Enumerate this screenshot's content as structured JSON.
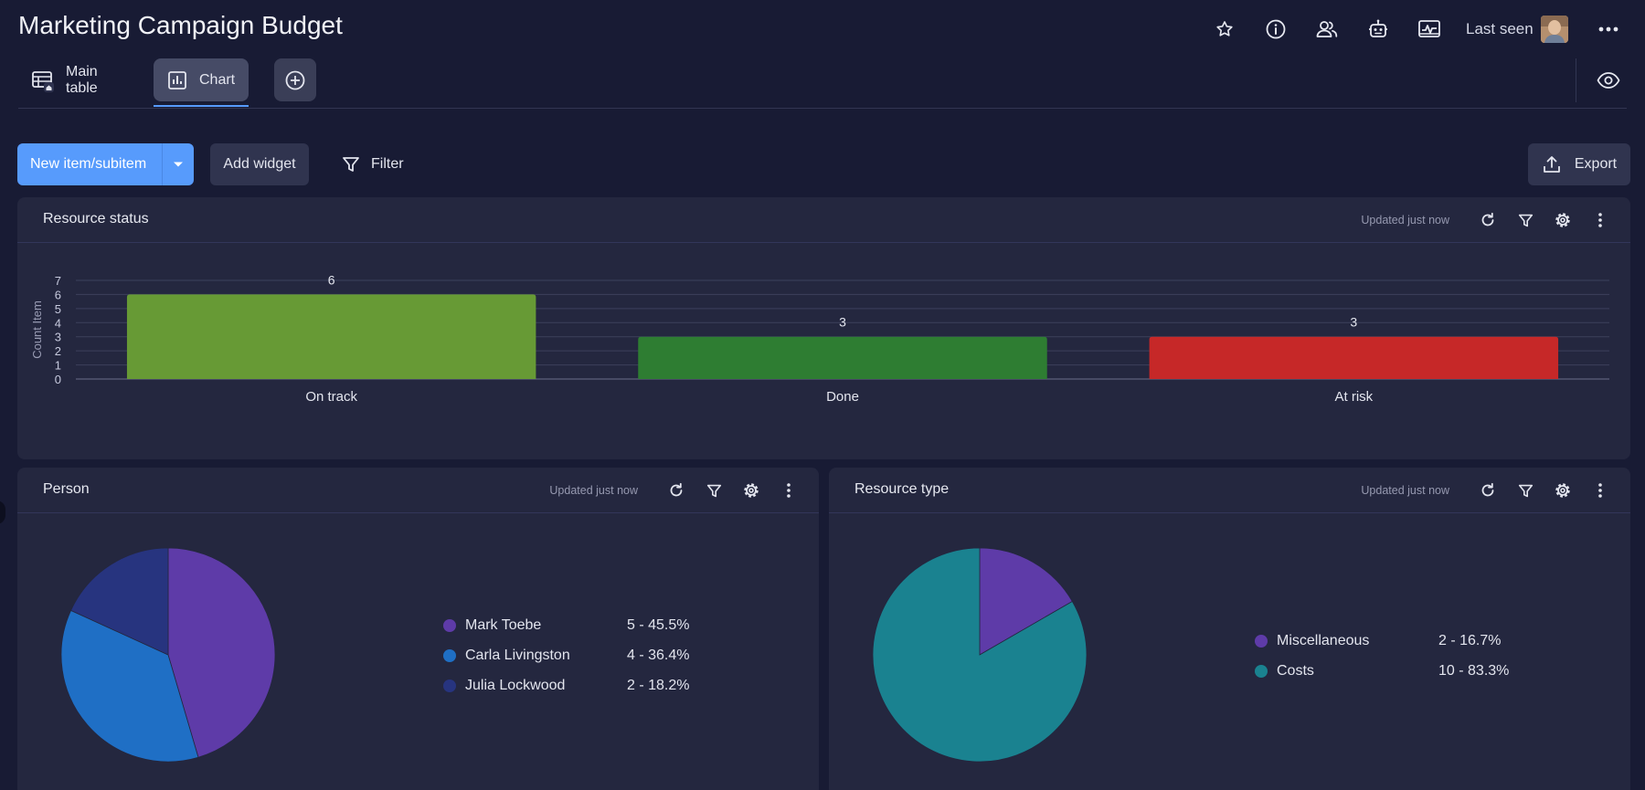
{
  "board": {
    "title": "Marketing Campaign Budget"
  },
  "header": {
    "icons": [
      "star-icon",
      "info-icon",
      "people-icon",
      "robot-icon",
      "activity-icon",
      "more-icon"
    ],
    "last_seen_label": "Last seen"
  },
  "views": {
    "tabs": [
      {
        "label": "Main table",
        "icon": "table-icon"
      },
      {
        "label": "Chart",
        "icon": "chart-icon"
      }
    ],
    "add_view_icon": "plus-circle-icon",
    "eye_icon": "eye-icon"
  },
  "toolbar": {
    "new_item_label": "New item/subitem",
    "add_widget_label": "Add widget",
    "filter_label": "Filter",
    "export_label": "Export"
  },
  "widgets": {
    "resource_status": {
      "title": "Resource status",
      "updated": "Updated just now"
    },
    "person": {
      "title": "Person",
      "updated": "Updated just now",
      "legend": [
        {
          "name": "Mark Toebe",
          "value": "5 - 45.5%"
        },
        {
          "name": "Carla Livingston",
          "value": "4 - 36.4%"
        },
        {
          "name": "Julia Lockwood",
          "value": "2 - 18.2%"
        }
      ]
    },
    "resource_type": {
      "title": "Resource type",
      "updated": "Updated just now",
      "legend": [
        {
          "name": "Miscellaneous",
          "value": "2 - 16.7%"
        },
        {
          "name": "Costs",
          "value": "10 - 83.3%"
        }
      ]
    }
  },
  "chart_data": [
    {
      "type": "bar",
      "title": "Resource status",
      "categories": [
        "On track",
        "Done",
        "At risk"
      ],
      "values": [
        6,
        3,
        3
      ],
      "colors": [
        "#679a35",
        "#2e7d32",
        "#c62828"
      ],
      "ylabel": "Count Item",
      "xlabel": "",
      "ylim": [
        0,
        7
      ],
      "yticks": [
        0,
        1,
        2,
        3,
        4,
        5,
        6,
        7
      ],
      "grid": true
    },
    {
      "type": "pie",
      "title": "Person",
      "labels": [
        "Mark Toebe",
        "Carla Livingston",
        "Julia Lockwood"
      ],
      "values": [
        5,
        4,
        2
      ],
      "percents": [
        45.5,
        36.4,
        18.2
      ],
      "colors": [
        "#5e3ba8",
        "#1f6fc5",
        "#27347f"
      ]
    },
    {
      "type": "pie",
      "title": "Resource type",
      "labels": [
        "Miscellaneous",
        "Costs"
      ],
      "values": [
        2,
        10
      ],
      "percents": [
        16.7,
        83.3
      ],
      "colors": [
        "#5e3ba8",
        "#1a8290"
      ]
    }
  ]
}
